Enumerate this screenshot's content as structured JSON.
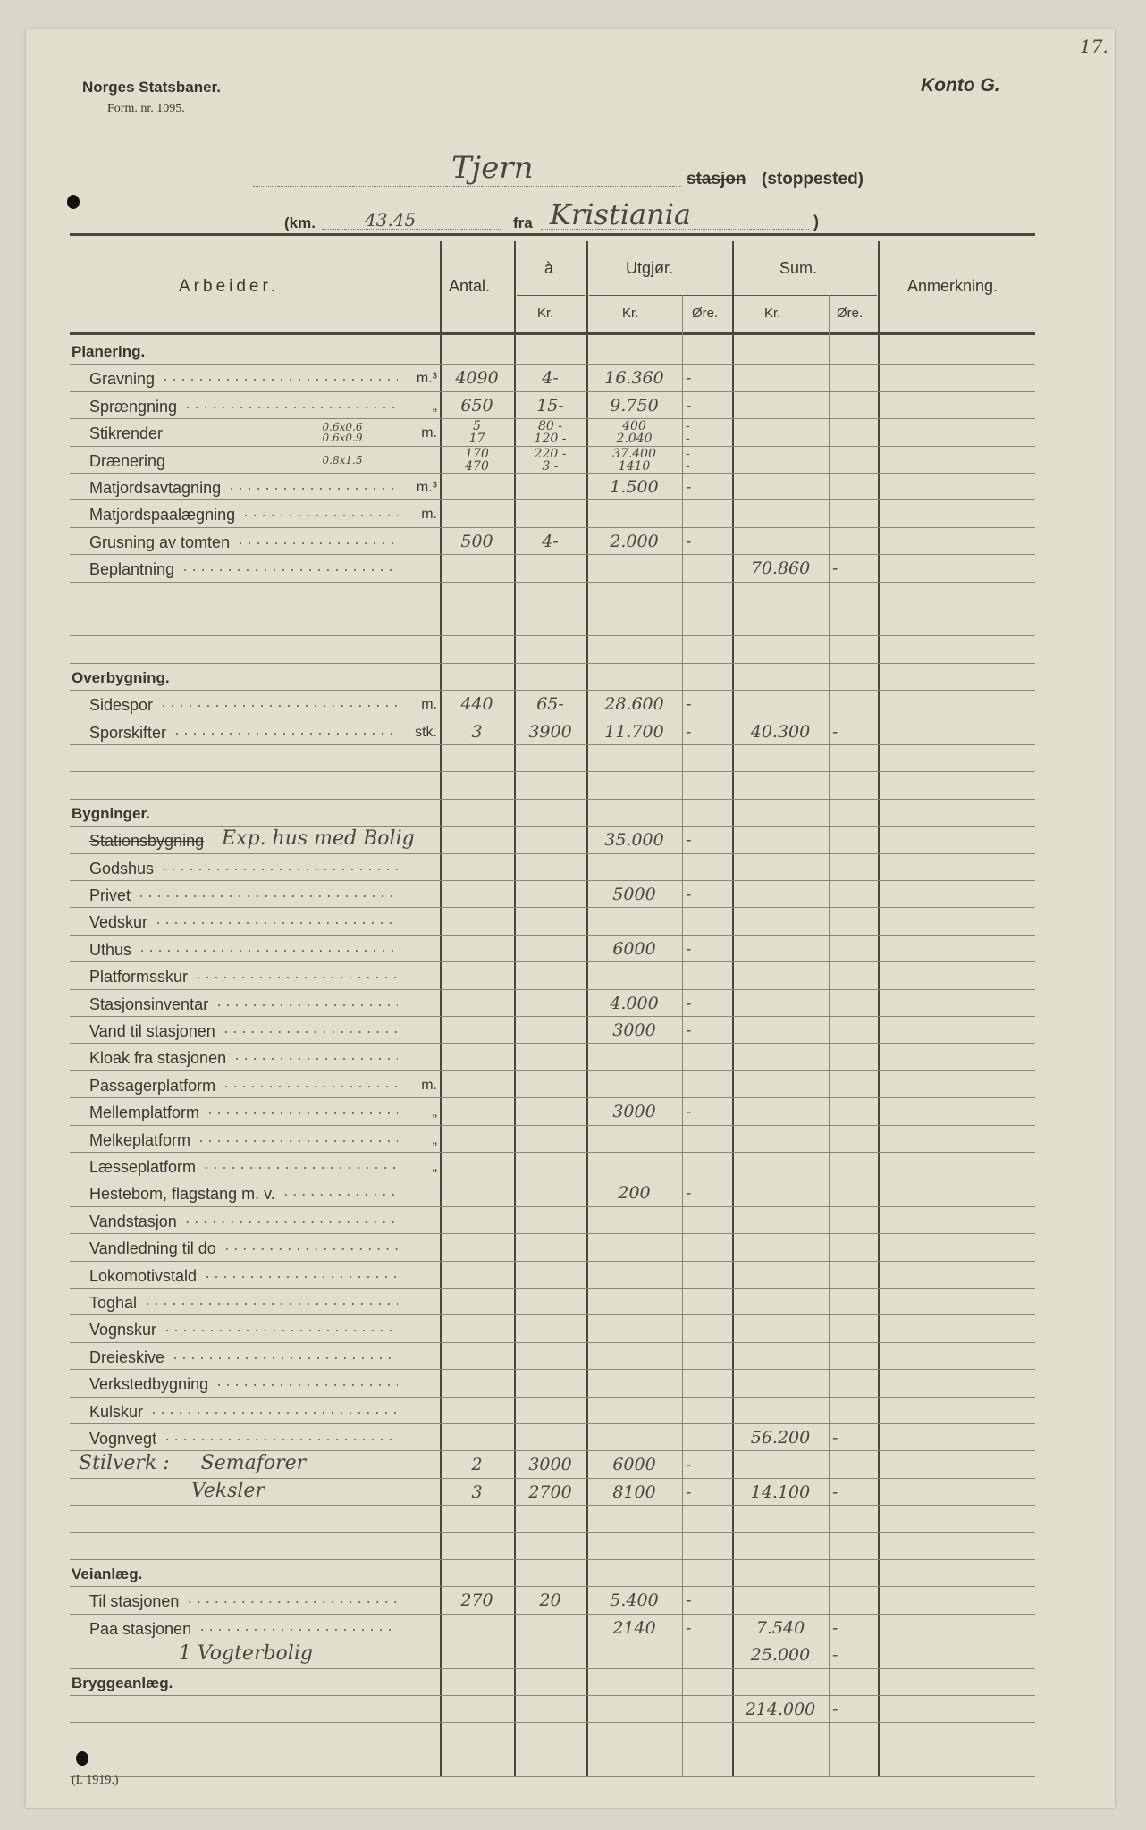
{
  "header": {
    "org": "Norges Statsbaner.",
    "form": "Form. nr. 1095.",
    "account": "Konto G.",
    "page_no": "17.",
    "station": "Tjern",
    "station_suffix_struck": "stasjon",
    "station_suffix": "(stoppested)",
    "km_label": "(km.",
    "km": "43.45",
    "from_label": "fra",
    "from": "Kristiania",
    "close_paren": ")"
  },
  "columns": {
    "work": "Arbeider.",
    "count": "Antal.",
    "each": "à",
    "each_kr": "Kr.",
    "amount": "Utgjør.",
    "amount_kr": "Kr.",
    "amount_ore": "Øre.",
    "sum": "Sum.",
    "sum_kr": "Kr.",
    "sum_ore": "Øre.",
    "remark": "Anmerkning."
  },
  "rows": [
    {
      "label": "Planering.",
      "section": true
    },
    {
      "label": "Gravning",
      "unit": "m.³",
      "count": "4090",
      "each": "4-",
      "kr": "16.360",
      "ore": "-"
    },
    {
      "label": "Sprængning",
      "unit": "„",
      "count": "650",
      "each": "15-",
      "kr": "9.750",
      "ore": "-"
    },
    {
      "label": "Stikrender",
      "unit": "m.",
      "note": "0.6x0.6  0.6x0.9",
      "count": "5\n17",
      "each": "80 -\n120 -",
      "kr": "400\n2.040",
      "ore": "-\n-"
    },
    {
      "label": "Drænering",
      "note": "0.8x1.5",
      "count": "170\n470",
      "each": "220 -\n3 -",
      "kr": "37.400\n1410",
      "ore": "-\n-"
    },
    {
      "label": "Matjordsavtagning",
      "unit": "m.³",
      "kr": "1.500",
      "ore": "-"
    },
    {
      "label": "Matjordspaalægning",
      "unit": "m."
    },
    {
      "label": "Grusning av tomten",
      "count": "500",
      "each": "4-",
      "kr": "2.000",
      "ore": "-"
    },
    {
      "label": "Beplantning",
      "sum": "70.860",
      "sum_ore": "-"
    },
    {},
    {},
    {},
    {
      "label": "Overbygning.",
      "section": true
    },
    {
      "label": "Sidespor",
      "unit": "m.",
      "count": "440",
      "each": "65-",
      "kr": "28.600",
      "ore": "-"
    },
    {
      "label": "Sporskifter",
      "unit": "stk.",
      "count": "3",
      "each": "3900",
      "kr": "11.700",
      "ore": "-",
      "sum": "40.300",
      "sum_ore": "-"
    },
    {},
    {},
    {
      "label": "Bygninger.",
      "section": true
    },
    {
      "label": "Stationsbygning",
      "struck": true,
      "hand_label": "Exp. hus med Bolig",
      "kr": "35.000",
      "ore": "-"
    },
    {
      "label": "Godshus"
    },
    {
      "label": "Privet",
      "kr": "5000",
      "ore": "-"
    },
    {
      "label": "Vedskur"
    },
    {
      "label": "Uthus",
      "kr": "6000",
      "ore": "-"
    },
    {
      "label": "Platformsskur"
    },
    {
      "label": "Stasjonsinventar",
      "kr": "4.000",
      "ore": "-"
    },
    {
      "label": "Vand til stasjonen",
      "kr": "3000",
      "ore": "-"
    },
    {
      "label": "Kloak fra stasjonen"
    },
    {
      "label": "Passagerplatform",
      "unit": "m."
    },
    {
      "label": "Mellemplatform",
      "unit": "„",
      "kr": "3000",
      "ore": "-"
    },
    {
      "label": "Melkeplatform",
      "unit": "„"
    },
    {
      "label": "Læsseplatform",
      "unit": "„"
    },
    {
      "label": "Hestebom, flagstang m. v.",
      "kr": "200",
      "ore": "-"
    },
    {
      "label": "Vandstasjon"
    },
    {
      "label": "Vandledning til do"
    },
    {
      "label": "Lokomotivstald"
    },
    {
      "label": "Toghal"
    },
    {
      "label": "Vognskur"
    },
    {
      "label": "Dreieskive"
    },
    {
      "label": "Verkstedbygning"
    },
    {
      "label": "Kulskur"
    },
    {
      "label": "Vognvegt",
      "sum": "56.200",
      "sum_ore": "-"
    },
    {
      "hand_label": "Stilverk :     Semaforer",
      "count": "2",
      "each": "3000",
      "kr": "6000",
      "ore": "-"
    },
    {
      "hand_label": "                  Veksler",
      "count": "3",
      "each": "2700",
      "kr": "8100",
      "ore": "-",
      "sum": "14.100",
      "sum_ore": "-"
    },
    {},
    {},
    {
      "label": "Veianlæg.",
      "section": true
    },
    {
      "label": "Til stasjonen",
      "count": "270",
      "each": "20",
      "kr": "5.400",
      "ore": "-"
    },
    {
      "label": "Paa stasjonen",
      "kr": "2140",
      "ore": "-",
      "sum": "7.540",
      "sum_ore": "-"
    },
    {
      "hand_label": "                1 Vogterbolig",
      "sum": "25.000",
      "sum_ore": "-"
    },
    {
      "label": "Bryggeanlæg.",
      "section": true
    },
    {
      "sum": "214.000",
      "sum_ore": "-"
    },
    {},
    {}
  ],
  "footer": {
    "form_year": "(I. 1919.)"
  }
}
